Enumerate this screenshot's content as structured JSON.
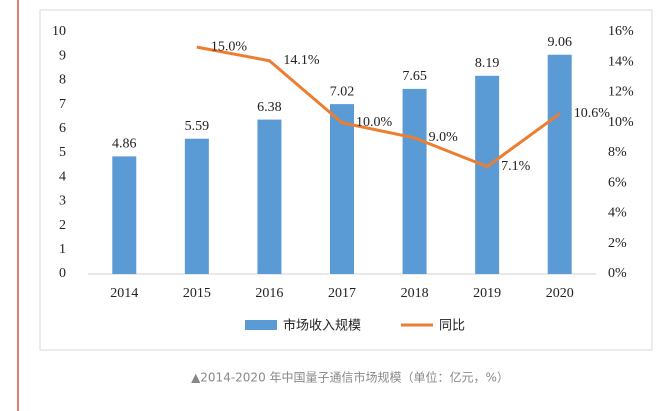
{
  "chart_data": {
    "type": "bar-line",
    "categories": [
      "2014",
      "2015",
      "2016",
      "2017",
      "2018",
      "2019",
      "2020"
    ],
    "series": [
      {
        "name": "市场收入规模",
        "color": "#5b9bd5",
        "type": "bar",
        "values": [
          4.86,
          5.59,
          6.38,
          7.02,
          7.65,
          8.19,
          9.06
        ]
      },
      {
        "name": "同比",
        "color": "#ed7d31",
        "type": "line",
        "axis": "y2",
        "values": [
          null,
          15.0,
          14.1,
          10.0,
          9.0,
          7.1,
          10.6
        ],
        "value_labels": [
          null,
          "15.0%",
          "14.1%",
          "10.0%",
          "9.0%",
          "7.1%",
          "10.6%"
        ]
      }
    ],
    "ylim": [
      0,
      10
    ],
    "yticks": [
      0,
      1,
      2,
      3,
      4,
      5,
      6,
      7,
      8,
      9,
      10
    ],
    "y2lim": [
      0,
      16
    ],
    "y2ticks": [
      {
        "value": 0,
        "label": "0%"
      },
      {
        "value": 2,
        "label": "2%"
      },
      {
        "value": 4,
        "label": "4%"
      },
      {
        "value": 6,
        "label": "6%"
      },
      {
        "value": 8,
        "label": "8%"
      },
      {
        "value": 10,
        "label": "10%"
      },
      {
        "value": 12,
        "label": "12%"
      },
      {
        "value": 14,
        "label": "14%"
      },
      {
        "value": 16,
        "label": "16%"
      }
    ],
    "grid": false,
    "legend": "bottom",
    "caption": "▲2014-2020 年中国量子通信市场规模（单位：亿元，%）"
  }
}
